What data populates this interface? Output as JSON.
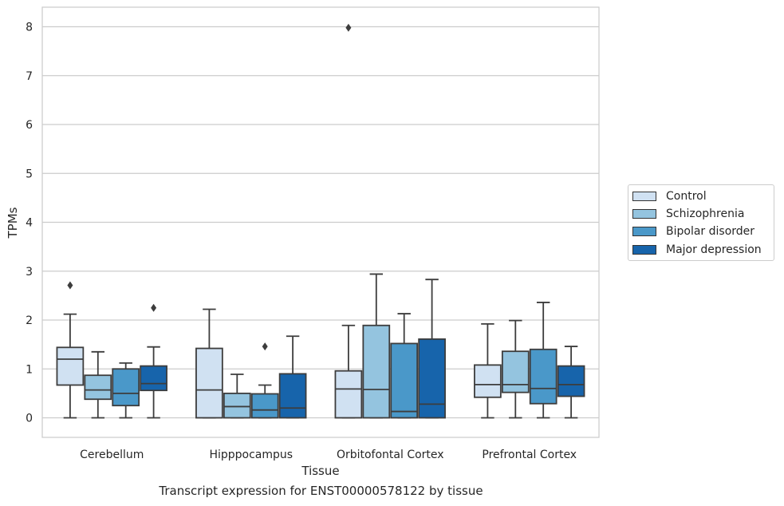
{
  "caption": "Transcript expression for ENST00000578122 by tissue",
  "legend": {
    "items": [
      {
        "label": "Control",
        "color": "#d0e1f2"
      },
      {
        "label": "Schizophrenia",
        "color": "#94c4df"
      },
      {
        "label": "Bipolar disorder",
        "color": "#4a98c9"
      },
      {
        "label": "Major depression",
        "color": "#1764ab"
      }
    ]
  },
  "chart_data": {
    "type": "box",
    "xlabel": "Tissue",
    "ylabel": "TPMs",
    "ylim": [
      -0.4,
      8.4
    ],
    "yticks": [
      0,
      1,
      2,
      3,
      4,
      5,
      6,
      7,
      8
    ],
    "grid": "horizontal",
    "legend_position": "right",
    "categories": [
      "Cerebellum",
      "Hipppocampus",
      "Orbitofontal Cortex",
      "Prefrontal Cortex"
    ],
    "series": [
      {
        "name": "Control",
        "color": "#d0e1f2",
        "boxes": [
          {
            "whisker_low": 0.0,
            "q1": 0.67,
            "median": 1.2,
            "q3": 1.44,
            "whisker_high": 2.12,
            "outliers": [
              2.71
            ]
          },
          {
            "whisker_low": 0.0,
            "q1": 0.0,
            "median": 0.57,
            "q3": 1.42,
            "whisker_high": 2.22,
            "outliers": []
          },
          {
            "whisker_low": 0.0,
            "q1": 0.0,
            "median": 0.59,
            "q3": 0.96,
            "whisker_high": 1.89,
            "outliers": [
              7.98
            ]
          },
          {
            "whisker_low": 0.0,
            "q1": 0.42,
            "median": 0.68,
            "q3": 1.08,
            "whisker_high": 1.92,
            "outliers": []
          }
        ]
      },
      {
        "name": "Schizophrenia",
        "color": "#94c4df",
        "boxes": [
          {
            "whisker_low": 0.0,
            "q1": 0.38,
            "median": 0.57,
            "q3": 0.87,
            "whisker_high": 1.35,
            "outliers": []
          },
          {
            "whisker_low": 0.0,
            "q1": 0.0,
            "median": 0.23,
            "q3": 0.5,
            "whisker_high": 0.89,
            "outliers": []
          },
          {
            "whisker_low": 0.0,
            "q1": 0.0,
            "median": 0.58,
            "q3": 1.89,
            "whisker_high": 2.94,
            "outliers": []
          },
          {
            "whisker_low": 0.0,
            "q1": 0.52,
            "median": 0.68,
            "q3": 1.36,
            "whisker_high": 1.99,
            "outliers": []
          }
        ]
      },
      {
        "name": "Bipolar disorder",
        "color": "#4a98c9",
        "boxes": [
          {
            "whisker_low": 0.0,
            "q1": 0.25,
            "median": 0.5,
            "q3": 1.0,
            "whisker_high": 1.12,
            "outliers": []
          },
          {
            "whisker_low": 0.0,
            "q1": 0.0,
            "median": 0.16,
            "q3": 0.49,
            "whisker_high": 0.67,
            "outliers": [
              1.46
            ]
          },
          {
            "whisker_low": 0.0,
            "q1": 0.0,
            "median": 0.13,
            "q3": 1.52,
            "whisker_high": 2.13,
            "outliers": []
          },
          {
            "whisker_low": 0.0,
            "q1": 0.29,
            "median": 0.6,
            "q3": 1.4,
            "whisker_high": 2.36,
            "outliers": []
          }
        ]
      },
      {
        "name": "Major depression",
        "color": "#1764ab",
        "boxes": [
          {
            "whisker_low": 0.0,
            "q1": 0.56,
            "median": 0.7,
            "q3": 1.06,
            "whisker_high": 1.45,
            "outliers": [
              2.25
            ]
          },
          {
            "whisker_low": 0.0,
            "q1": 0.0,
            "median": 0.2,
            "q3": 0.9,
            "whisker_high": 1.67,
            "outliers": []
          },
          {
            "whisker_low": 0.0,
            "q1": 0.0,
            "median": 0.28,
            "q3": 1.61,
            "whisker_high": 2.83,
            "outliers": []
          },
          {
            "whisker_low": 0.0,
            "q1": 0.44,
            "median": 0.68,
            "q3": 1.06,
            "whisker_high": 1.46,
            "outliers": []
          }
        ]
      }
    ]
  }
}
